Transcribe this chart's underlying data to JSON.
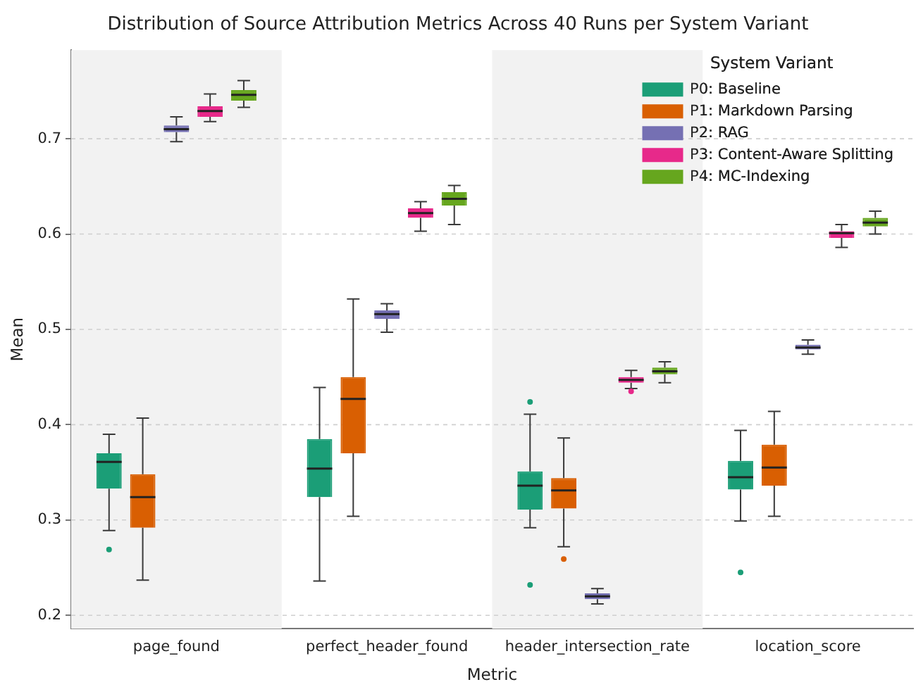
{
  "chart_data": {
    "type": "box",
    "title": "Distribution of Source Attribution Metrics Across 40 Runs per System Variant",
    "xlabel": "Metric",
    "ylabel": "Mean",
    "legend_title": "System Variant",
    "legend": "top right",
    "grid": "y",
    "categories": [
      "page_found",
      "perfect_header_found",
      "header_intersection_rate",
      "location_score"
    ],
    "ylim": [
      0.186,
      0.793
    ],
    "yticks": [
      0.2,
      0.3,
      0.4,
      0.5,
      0.6,
      0.7
    ],
    "bands": [
      {
        "axis": "x",
        "from": "page_found",
        "to": "page_found",
        "color": "#f2f2f2"
      },
      {
        "axis": "x",
        "from": "header_intersection_rate",
        "to": "header_intersection_rate",
        "color": "#f2f2f2"
      }
    ],
    "series": [
      {
        "name": "P0: Baseline",
        "color": "#1b9e77",
        "boxes": [
          {
            "low": 0.289,
            "q1": 0.333,
            "median": 0.361,
            "q3": 0.37,
            "high": 0.39,
            "outliers": [
              0.269
            ]
          },
          {
            "low": 0.236,
            "q1": 0.324,
            "median": 0.354,
            "q3": 0.385,
            "high": 0.439
          },
          {
            "low": 0.292,
            "q1": 0.311,
            "median": 0.336,
            "q3": 0.351,
            "high": 0.411,
            "outliers": [
              0.424,
              0.232
            ]
          },
          {
            "low": 0.299,
            "q1": 0.332,
            "median": 0.345,
            "q3": 0.362,
            "high": 0.394,
            "outliers": [
              0.245
            ]
          }
        ]
      },
      {
        "name": "P1: Markdown Parsing",
        "color": "#d95f02",
        "boxes": [
          {
            "low": 0.237,
            "q1": 0.292,
            "median": 0.324,
            "q3": 0.348,
            "high": 0.407
          },
          {
            "low": 0.304,
            "q1": 0.37,
            "median": 0.427,
            "q3": 0.45,
            "high": 0.532
          },
          {
            "low": 0.272,
            "q1": 0.312,
            "median": 0.331,
            "q3": 0.344,
            "high": 0.386,
            "outliers": [
              0.259
            ]
          },
          {
            "low": 0.304,
            "q1": 0.336,
            "median": 0.355,
            "q3": 0.379,
            "high": 0.414
          }
        ]
      },
      {
        "name": "P2: RAG",
        "color": "#7570b3",
        "boxes": [
          {
            "low": 0.697,
            "q1": 0.707,
            "median": 0.71,
            "q3": 0.714,
            "high": 0.723
          },
          {
            "low": 0.497,
            "q1": 0.511,
            "median": 0.516,
            "q3": 0.52,
            "high": 0.527
          },
          {
            "low": 0.212,
            "q1": 0.217,
            "median": 0.22,
            "q3": 0.223,
            "high": 0.228
          },
          {
            "low": 0.474,
            "q1": 0.479,
            "median": 0.481,
            "q3": 0.484,
            "high": 0.489
          }
        ]
      },
      {
        "name": "P3: Content-Aware Splitting",
        "color": "#e7298a",
        "boxes": [
          {
            "low": 0.718,
            "q1": 0.723,
            "median": 0.729,
            "q3": 0.734,
            "high": 0.747
          },
          {
            "low": 0.603,
            "q1": 0.617,
            "median": 0.622,
            "q3": 0.627,
            "high": 0.634
          },
          {
            "low": 0.438,
            "q1": 0.444,
            "median": 0.447,
            "q3": 0.45,
            "high": 0.457,
            "outliers": [
              0.435
            ]
          },
          {
            "low": 0.586,
            "q1": 0.596,
            "median": 0.601,
            "q3": 0.603,
            "high": 0.61
          }
        ]
      },
      {
        "name": "P4: MC-Indexing",
        "color": "#66a61e",
        "boxes": [
          {
            "low": 0.733,
            "q1": 0.74,
            "median": 0.746,
            "q3": 0.751,
            "high": 0.761
          },
          {
            "low": 0.61,
            "q1": 0.63,
            "median": 0.637,
            "q3": 0.644,
            "high": 0.651
          },
          {
            "low": 0.444,
            "q1": 0.453,
            "median": 0.456,
            "q3": 0.46,
            "high": 0.466
          },
          {
            "low": 0.6,
            "q1": 0.608,
            "median": 0.612,
            "q3": 0.617,
            "high": 0.624
          }
        ]
      }
    ]
  }
}
